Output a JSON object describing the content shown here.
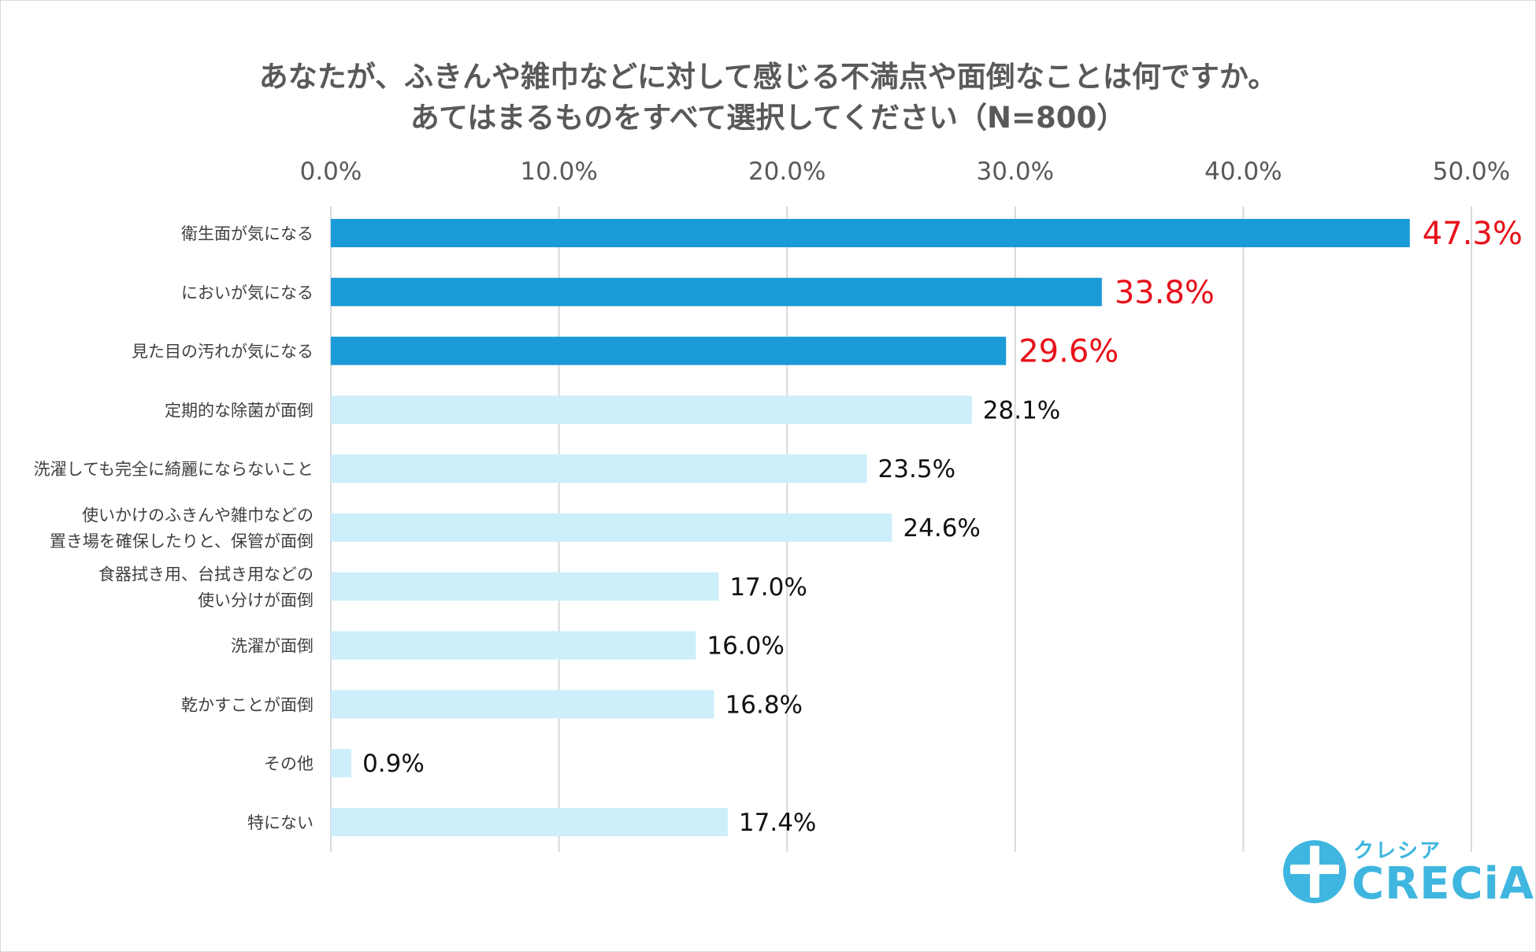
{
  "chart_data": {
    "type": "bar",
    "orientation": "horizontal",
    "title": "あなたが、ふきんや雑巾などに対して感じる不満点や面倒なことは何ですか。\nあてはまるものをすべて選択してください（N=800）",
    "categories": [
      "衛生面が気になる",
      "においが気になる",
      "見た目の汚れが気になる",
      "定期的な除菌が面倒",
      "洗濯しても完全に綺麗にならないこと",
      "使いかけのふきんや雑巾などの\n置き場を確保したりと、保管が面倒",
      "食器拭き用、台拭き用などの\n使い分けが面倒",
      "洗濯が面倒",
      "乾かすことが面倒",
      "その他",
      "特にない"
    ],
    "values": [
      47.3,
      33.8,
      29.6,
      28.1,
      23.5,
      24.6,
      17.0,
      16.0,
      16.8,
      0.9,
      17.4
    ],
    "value_labels": [
      "47.3%",
      "33.8%",
      "29.6%",
      "28.1%",
      "23.5%",
      "24.6%",
      "17.0%",
      "16.0%",
      "16.8%",
      "0.9%",
      "17.4%"
    ],
    "highlight_count": 3,
    "xlim": [
      0,
      50
    ],
    "x_ticks": [
      "0.0%",
      "10.0%",
      "20.0%",
      "30.0%",
      "40.0%",
      "50.0%"
    ],
    "x_tick_values": [
      0,
      10,
      20,
      30,
      40,
      50
    ],
    "xaxis_position": "top",
    "grid": true,
    "legend": "none",
    "colors": {
      "highlight_bar": "#1a9ad6",
      "normal_bar": "#cdeefb",
      "highlight_label": "#e8111a",
      "normal_label": "#111111",
      "grid": "#d9d9d9",
      "tick_label": "#595959",
      "category_label": "#404040",
      "title": "#595959"
    }
  },
  "logo": {
    "kana": "クレシア",
    "word": "CRECiA",
    "color": "#3fb6df",
    "icon": "crecia-cross-logo-icon"
  }
}
